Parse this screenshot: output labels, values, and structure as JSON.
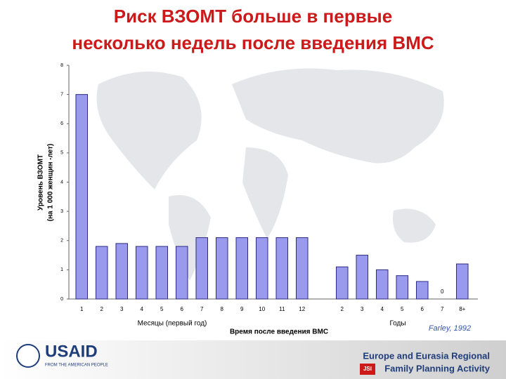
{
  "chart_data": {
    "type": "bar",
    "title": [
      "Риск ВЗОМТ больше в первые",
      "несколько недель после введения ВМС"
    ],
    "ylabel": [
      "Уровень ВЗОМТ",
      "(на 1 000 женщин -лет)"
    ],
    "xlabel": "Время после введения ВМС",
    "x_group_labels": [
      "Месяцы (первый год)",
      "Годы"
    ],
    "categories": [
      "1",
      "2",
      "3",
      "4",
      "5",
      "6",
      "7",
      "8",
      "9",
      "10",
      "11",
      "12",
      null,
      "2",
      "3",
      "4",
      "5",
      "6",
      "7",
      "8+"
    ],
    "values": [
      7,
      1.8,
      1.9,
      1.8,
      1.8,
      1.8,
      2.1,
      2.1,
      2.1,
      2.1,
      2.1,
      2.1,
      null,
      1.1,
      1.5,
      1.0,
      0.8,
      0.6,
      0,
      1.2
    ],
    "color": "#9999ee",
    "ylim": [
      0,
      8
    ],
    "yticks": [
      0,
      1,
      2,
      3,
      4,
      5,
      6,
      7,
      8
    ]
  },
  "citation": "Farley, 1992",
  "footer": {
    "logo": "USAID",
    "logo_tagline": "FROM THE AMERICAN PEOPLE",
    "org": [
      "Europe and Eurasia Regional",
      "Family Planning Activity"
    ],
    "partner": "JSI"
  }
}
